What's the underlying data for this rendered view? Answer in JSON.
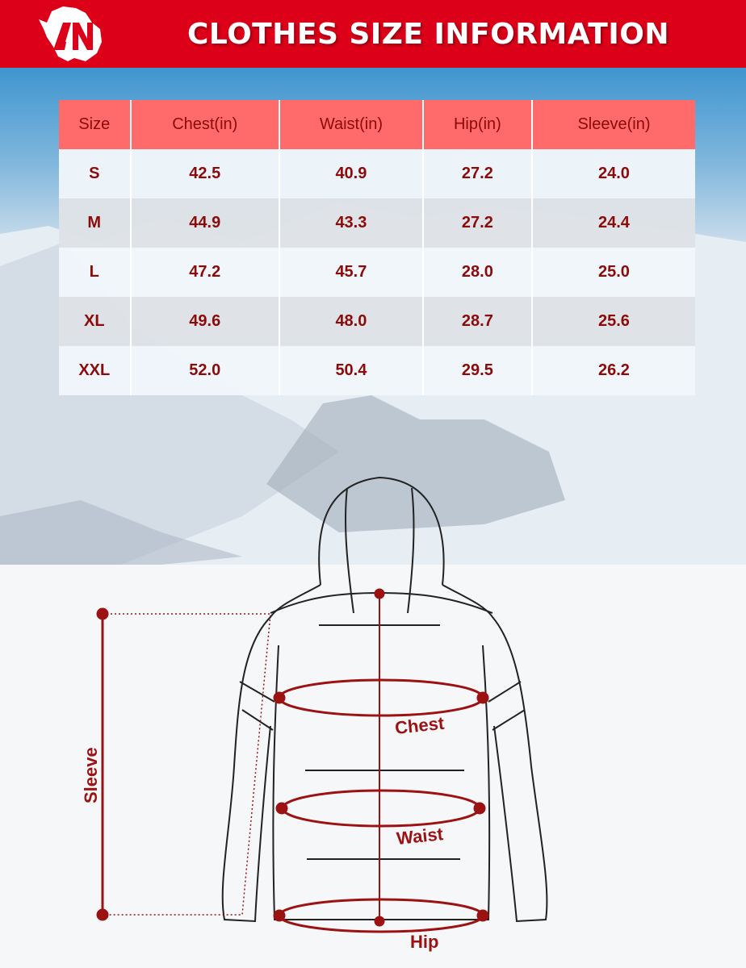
{
  "header": {
    "title": "CLOTHES SIZE INFORMATION",
    "logo_text": "AN"
  },
  "colors": {
    "header": "#dc0018",
    "table_header": "#ff6b6b",
    "text": "#8b0a0a",
    "measure": "#9c1212"
  },
  "table": {
    "columns": [
      "Size",
      "Chest(in)",
      "Waist(in)",
      "Hip(in)",
      "Sleeve(in)"
    ],
    "rows": [
      [
        "S",
        "42.5",
        "40.9",
        "27.2",
        "24.0"
      ],
      [
        "M",
        "44.9",
        "43.3",
        "27.2",
        "24.4"
      ],
      [
        "L",
        "47.2",
        "45.7",
        "28.0",
        "25.0"
      ],
      [
        "XL",
        "49.6",
        "48.0",
        "28.7",
        "25.6"
      ],
      [
        "XXL",
        "52.0",
        "50.4",
        "29.5",
        "26.2"
      ]
    ]
  },
  "diagram": {
    "chest": "Chest",
    "waist": "Waist",
    "hip": "Hip",
    "sleeve": "Sleeve"
  }
}
